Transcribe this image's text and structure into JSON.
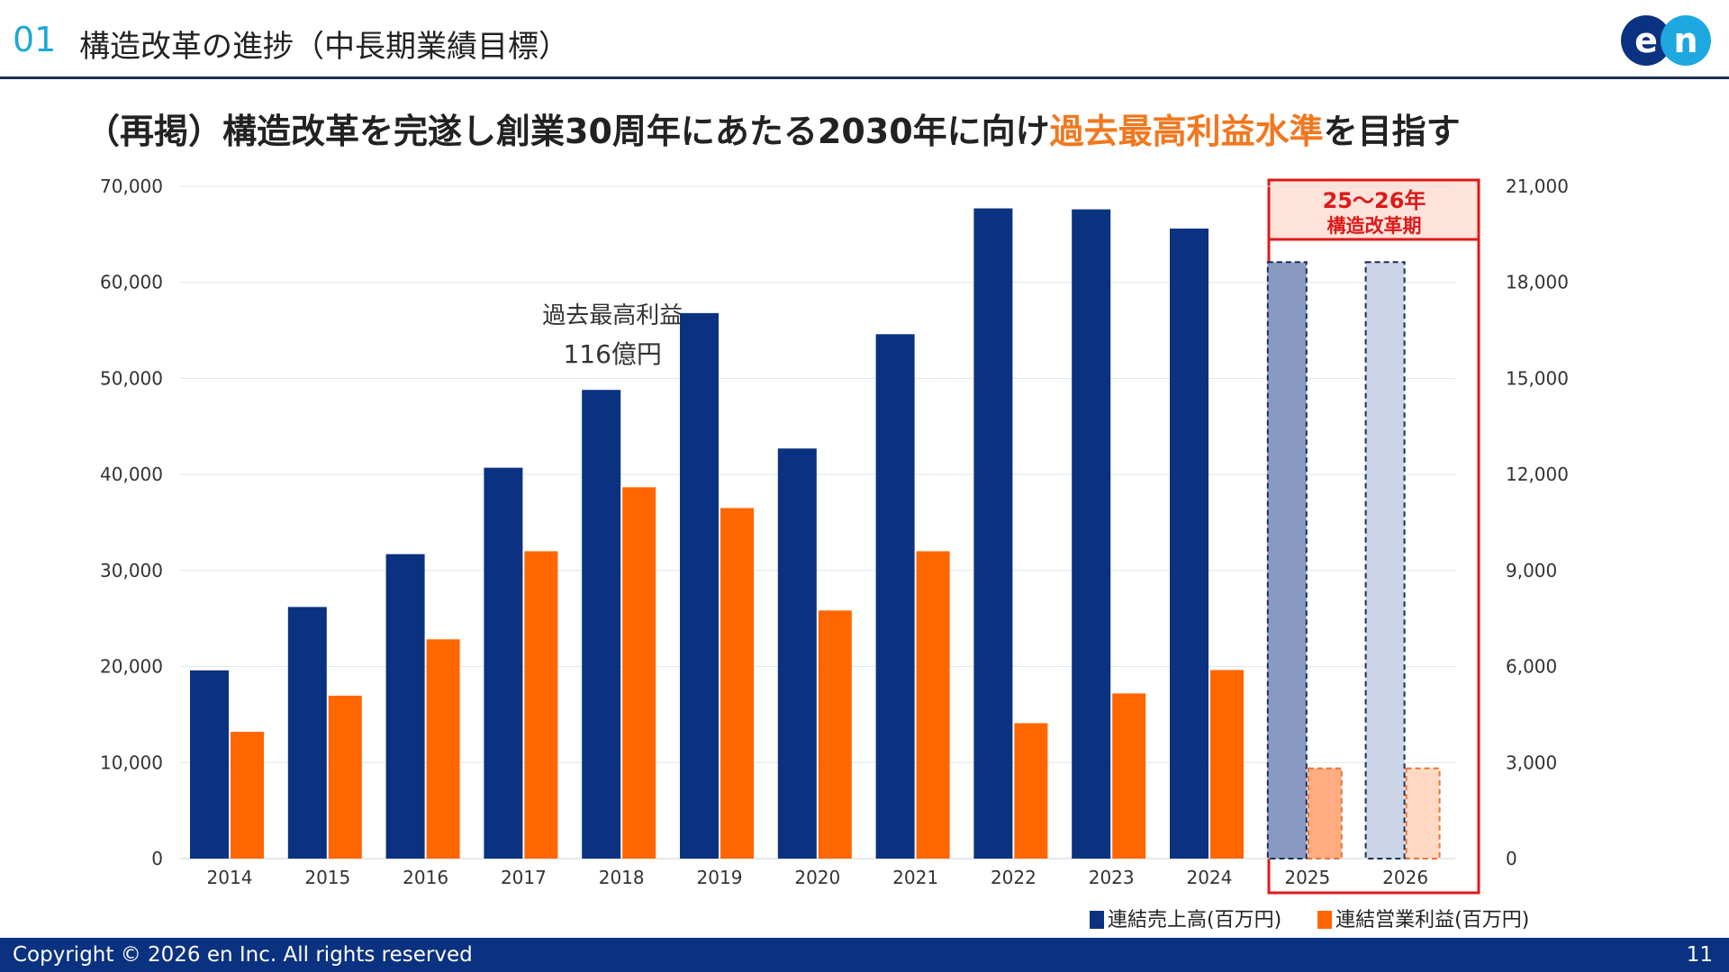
{
  "header": {
    "section_number": "01",
    "title": "構造改革の進捗（中長期業績目標）",
    "logo_text": "en"
  },
  "subtitle": {
    "prefix": "（再掲）構造改革を完遂し創業30周年にあたる2030年に向け",
    "highlight": "過去最高利益水準",
    "suffix": "を目指す"
  },
  "colors": {
    "sales": "#0b3281",
    "profit": "#ff6600",
    "sales_plan_2025": "#8899c2",
    "sales_plan_2026": "#ccd4e8",
    "profit_plan_2025": "#ffad80",
    "profit_plan_2026": "#ffd9c4",
    "highlight_box": "#dd1a1a",
    "accent_text": "#f07820"
  },
  "chart_data": {
    "type": "bar",
    "categories": [
      "2014",
      "2015",
      "2016",
      "2017",
      "2018",
      "2019",
      "2020",
      "2021",
      "2022",
      "2023",
      "2024",
      "2025",
      "2026"
    ],
    "series": [
      {
        "name": "連結売上高(百万円)",
        "axis": "left",
        "values": [
          19600,
          26200,
          31700,
          40700,
          48800,
          56800,
          42700,
          54600,
          67700,
          67600,
          65600,
          62100,
          62100
        ]
      },
      {
        "name": "連結営業利益(百万円)",
        "axis": "right",
        "values": [
          3960,
          5090,
          6850,
          9600,
          11600,
          10950,
          7750,
          9600,
          4230,
          5160,
          5890,
          2820,
          2820
        ]
      }
    ],
    "planned_categories": [
      "2025",
      "2026"
    ],
    "left_axis": {
      "ylim": [
        0,
        70000
      ],
      "ticks": [
        "0",
        "10,000",
        "20,000",
        "30,000",
        "40,000",
        "50,000",
        "60,000",
        "70,000"
      ]
    },
    "right_axis": {
      "ylim": [
        0,
        21000
      ],
      "ticks": [
        "0",
        "3,000",
        "6,000",
        "9,000",
        "12,000",
        "15,000",
        "18,000",
        "21,000"
      ]
    },
    "grid": true,
    "legend_position": "bottom-right",
    "annotations": [
      {
        "text_line1": "過去最高利益",
        "text_line2": "116億円",
        "category": "2018"
      },
      {
        "text_line1": "25～26年",
        "text_line2": "構造改革期",
        "categories": [
          "2025",
          "2026"
        ]
      }
    ]
  },
  "footer": {
    "copyright": "Copyright © 2026 en Inc. All rights reserved",
    "page_number": "11"
  }
}
